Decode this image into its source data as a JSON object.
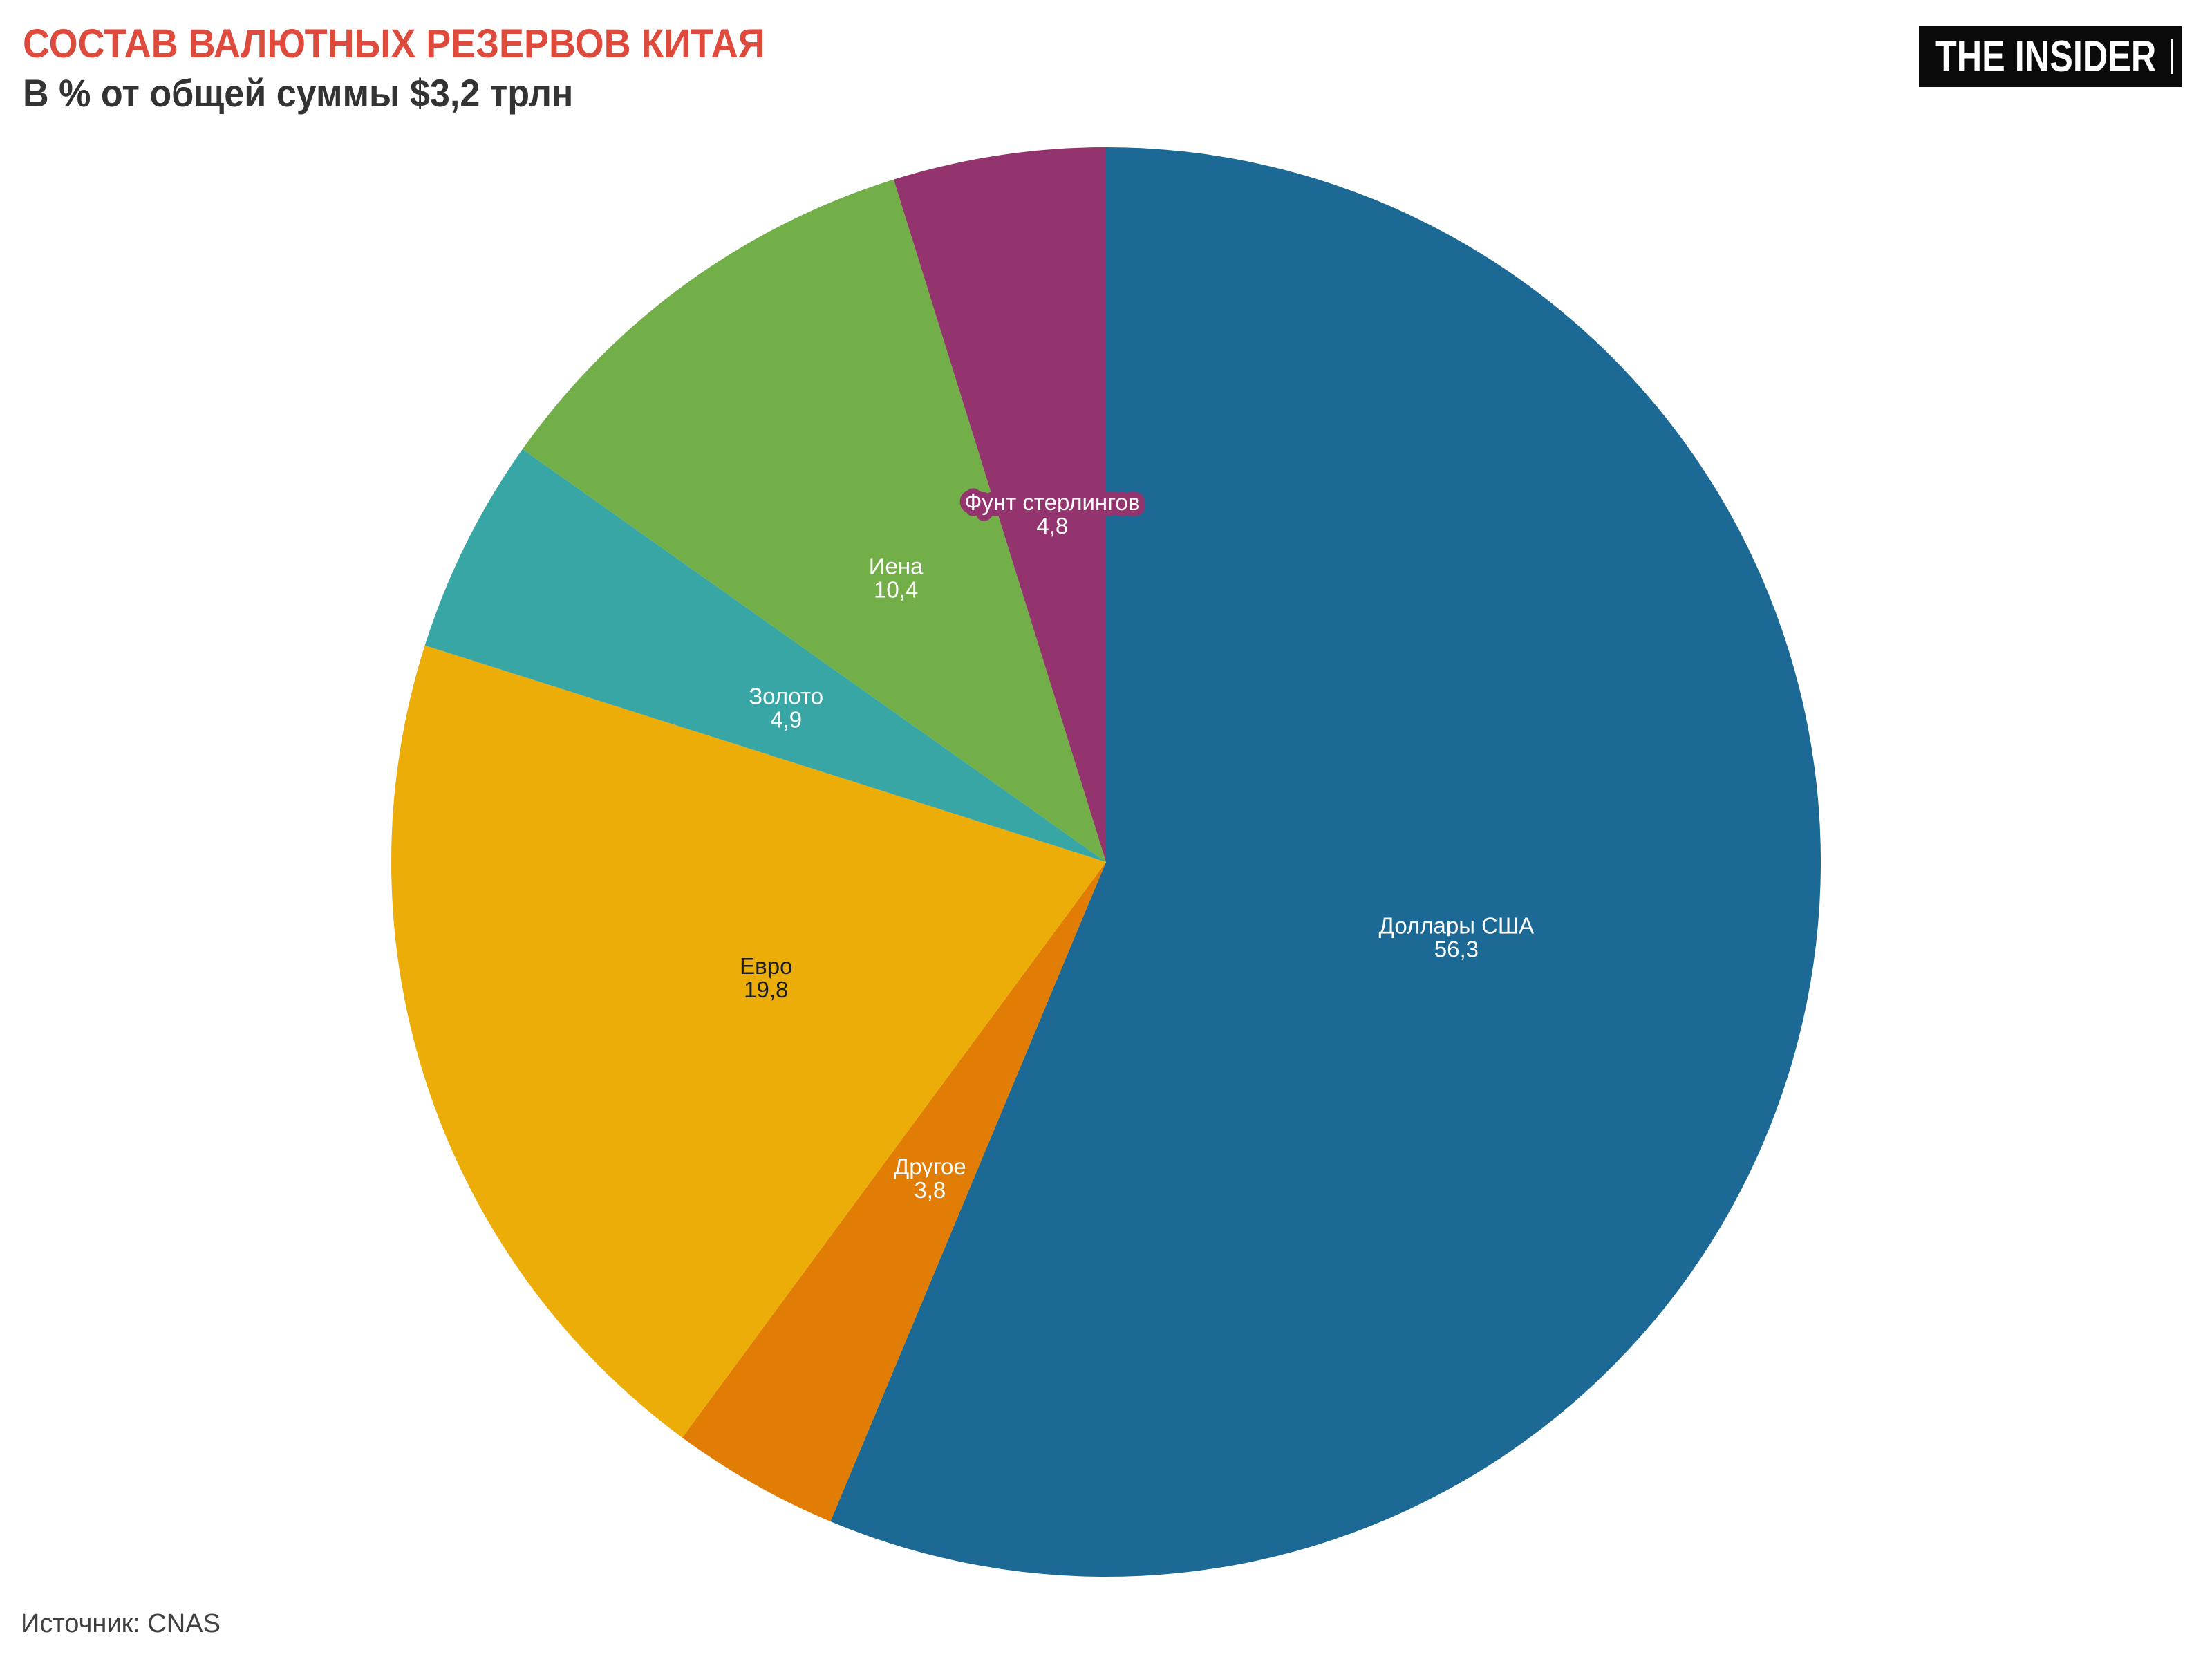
{
  "logo": {
    "text": "THE INSIDER",
    "bg_color": "#0a0a0a",
    "fg_color": "#ffffff"
  },
  "chart_data": {
    "type": "pie",
    "title": "СОСТАВ ВАЛЮТНЫХ РЕЗЕРВОВ КИТАЯ",
    "subtitle": "В % от общей суммы $3,2 трлн",
    "source_text": "Источник: CNAS",
    "unit": "%",
    "start_angle_deg": 0,
    "direction": "clockwise",
    "title_color": "#de4a3c",
    "decimal_separator": ",",
    "slices": [
      {
        "id": "usd",
        "label": "Доллары США",
        "value": 56.3,
        "color": "#1D6996",
        "text_color": "#ffffff"
      },
      {
        "id": "other",
        "label": "Другое",
        "value": 3.8,
        "color": "#E17C05",
        "text_color": "#ffffff"
      },
      {
        "id": "euro",
        "label": "Евро",
        "value": 19.8,
        "color": "#EDAD08",
        "text_color": "#1d1d1d"
      },
      {
        "id": "gold",
        "label": "Золото",
        "value": 4.9,
        "color": "#38A6A5",
        "text_color": "#ffffff"
      },
      {
        "id": "yen",
        "label": "Иена",
        "value": 10.4,
        "color": "#73AF48",
        "text_color": "#ffffff"
      },
      {
        "id": "gbp",
        "label": "Фунт стерлингов",
        "value": 4.8,
        "color": "#94346E",
        "text_color": "#ffffff"
      }
    ]
  }
}
